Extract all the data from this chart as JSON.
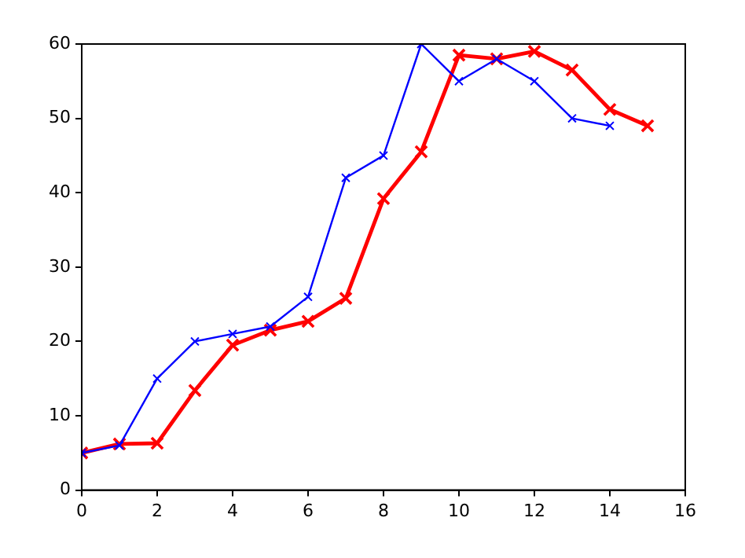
{
  "chart_data": {
    "type": "line",
    "xlim": [
      0,
      16
    ],
    "xticks": [
      0,
      2,
      4,
      6,
      8,
      10,
      12,
      14,
      16
    ],
    "ylim": [
      0,
      60
    ],
    "yticks": [
      0,
      10,
      20,
      30,
      40,
      50,
      60
    ],
    "grid": false,
    "legend": false,
    "marker": "cross",
    "line_style": "solid",
    "series": [
      {
        "color": "#0000ff",
        "x": [
          0,
          1,
          2,
          3,
          4,
          5,
          6,
          7,
          8,
          9,
          10,
          11,
          12,
          13,
          14
        ],
        "values": [
          5,
          6,
          15,
          20,
          21,
          22,
          26,
          42,
          45,
          60,
          55,
          58,
          55,
          50,
          49
        ]
      },
      {
        "color": "#ff0000",
        "x": [
          0,
          1,
          2,
          3,
          4,
          5,
          6,
          7,
          8,
          9,
          10,
          11,
          12,
          13,
          14,
          15
        ],
        "values": [
          5,
          6.2,
          6.3,
          13.4,
          19.5,
          21.5,
          22.7,
          25.8,
          39.2,
          45.5,
          58.5,
          58,
          59,
          56.5,
          51.2,
          49
        ]
      }
    ]
  }
}
